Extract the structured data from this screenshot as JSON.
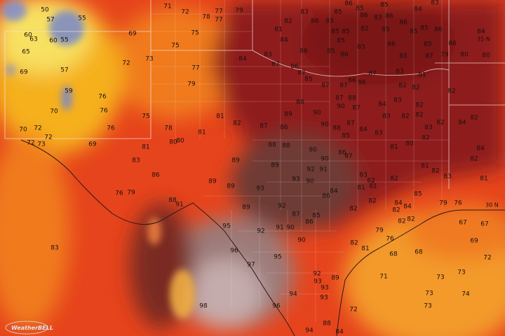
{
  "map": {
    "temperatures": [
      50,
      57,
      55,
      60,
      63,
      60,
      55,
      65,
      69,
      72,
      73,
      69,
      57,
      59,
      76,
      76,
      70,
      76,
      75,
      70,
      72,
      72,
      72,
      73,
      69,
      71,
      72,
      78,
      77,
      77,
      79,
      75,
      75,
      77,
      84,
      79,
      81,
      78,
      81,
      82,
      80,
      80,
      81,
      83,
      86,
      76,
      79,
      88,
      91,
      83,
      83,
      85,
      86,
      85,
      85,
      84,
      83,
      82,
      86,
      83,
      86,
      83,
      86,
      86,
      85,
      86,
      84,
      81,
      85,
      85,
      82,
      85,
      85,
      84,
      85,
      83,
      86,
      85,
      86,
      83,
      86,
      85,
      86,
      85,
      87,
      79,
      80,
      80,
      87,
      86,
      87,
      87,
      83,
      81,
      85,
      86,
      87,
      87,
      86,
      82,
      82,
      82,
      88,
      90,
      87,
      88,
      90,
      87,
      84,
      83,
      82,
      89,
      90,
      88,
      87,
      84,
      83,
      82,
      82,
      82,
      84,
      82,
      87,
      86,
      85,
      83,
      83,
      80,
      81,
      82,
      84,
      82,
      88,
      88,
      90,
      86,
      89,
      89,
      90,
      92,
      91,
      87,
      81,
      82,
      83,
      81,
      83,
      82,
      89,
      89,
      93,
      93,
      90,
      81,
      81,
      84,
      86,
      82,
      85,
      84,
      84,
      82,
      79,
      76,
      82,
      82,
      89,
      92,
      87,
      85,
      86,
      95,
      92,
      91,
      90,
      82,
      82,
      79,
      76,
      67,
      67,
      69,
      90,
      82,
      81,
      96,
      95,
      68,
      68,
      72,
      97,
      92,
      93,
      89,
      71,
      73,
      73,
      93,
      94,
      74,
      73,
      98,
      96,
      93,
      72,
      73,
      94,
      88,
      84
    ],
    "latitude_labels": [
      "35 N",
      "30 N"
    ],
    "logo": "WeatherBELL"
  }
}
